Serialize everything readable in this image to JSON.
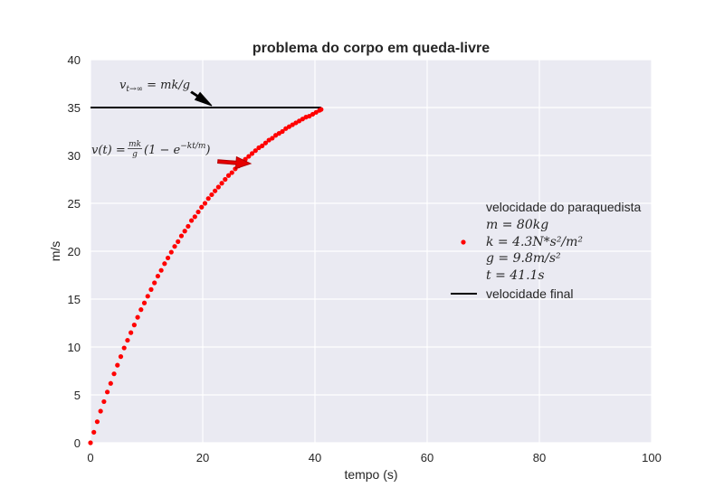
{
  "chart_data": {
    "type": "scatter",
    "title": "problema do corpo em queda-livre",
    "xlabel": "tempo (s)",
    "ylabel": "m/s",
    "xlim": [
      0,
      100
    ],
    "ylim": [
      0,
      40
    ],
    "xticks": [
      "0",
      "20",
      "40",
      "60",
      "80",
      "100"
    ],
    "yticks": [
      "0",
      "5",
      "10",
      "15",
      "20",
      "25",
      "30",
      "35",
      "40"
    ],
    "grid": true,
    "legend_position": "center-right",
    "series": [
      {
        "name": "velocidade do paraquedista",
        "kind": "scatter",
        "color": "#ff0000",
        "x": [
          0.0,
          0.6,
          1.2,
          1.8,
          2.4,
          3.0,
          3.6,
          4.2,
          4.8,
          5.4,
          6.0,
          6.6,
          7.2,
          7.8,
          8.4,
          9.0,
          9.6,
          10.2,
          10.8,
          11.4,
          12.0,
          12.6,
          13.2,
          13.8,
          14.4,
          15.0,
          15.6,
          16.2,
          16.8,
          17.4,
          18.0,
          18.6,
          19.2,
          19.8,
          20.4,
          21.0,
          21.6,
          22.2,
          22.8,
          23.4,
          24.0,
          24.6,
          25.2,
          25.8,
          26.4,
          27.0,
          27.6,
          28.2,
          28.8,
          29.4,
          30.0,
          30.6,
          31.2,
          31.8,
          32.4,
          33.0,
          33.6,
          34.2,
          34.8,
          35.4,
          36.0,
          36.6,
          37.2,
          37.8,
          38.4,
          39.0,
          39.6,
          40.2,
          40.8,
          41.1
        ],
        "y": [
          0.0,
          1.1,
          2.2,
          3.3,
          4.3,
          5.3,
          6.2,
          7.2,
          8.1,
          9.0,
          9.9,
          10.7,
          11.5,
          12.3,
          13.1,
          13.9,
          14.6,
          15.3,
          16.0,
          16.7,
          17.4,
          18.0,
          18.7,
          19.3,
          19.9,
          20.5,
          21.0,
          21.6,
          22.1,
          22.6,
          23.2,
          23.6,
          24.1,
          24.6,
          25.0,
          25.5,
          25.9,
          26.3,
          26.7,
          27.1,
          27.5,
          27.9,
          28.2,
          28.6,
          28.9,
          29.3,
          29.6,
          29.9,
          30.2,
          30.5,
          30.8,
          31.0,
          31.3,
          31.6,
          31.8,
          32.1,
          32.3,
          32.5,
          32.8,
          33.0,
          33.2,
          33.4,
          33.6,
          33.8,
          34.0,
          34.1,
          34.3,
          34.5,
          34.7,
          34.8
        ]
      },
      {
        "name": "velocidade final",
        "kind": "line",
        "color": "#000000",
        "x": [
          0,
          41.1
        ],
        "y": [
          35,
          35
        ]
      }
    ],
    "legend": {
      "scatter_lines": [
        "velocidade do paraquedista",
        "m = 80kg",
        "k = 4.3N*s²/m²",
        "g = 9.8m/s²",
        "t = 41.1s"
      ],
      "line_label": "velocidade final"
    },
    "annotations": [
      {
        "text": "v_{t→∞} = mk/g",
        "base": "v",
        "subscript": "t→∞",
        "rest": " = mk/g",
        "arrow_color": "#000000",
        "target": [
          21.8,
          35
        ]
      },
      {
        "text": "v(t) = (mk/g)(1 − e^(−kt/m))",
        "lhs": "v(t) = ",
        "frac_num": "mk",
        "frac_den": "g",
        "mid": "(1 − e",
        "exponent": "−kt/m",
        "end": ")",
        "arrow_color": "#e60000",
        "target": [
          28,
          29.3
        ]
      }
    ]
  }
}
